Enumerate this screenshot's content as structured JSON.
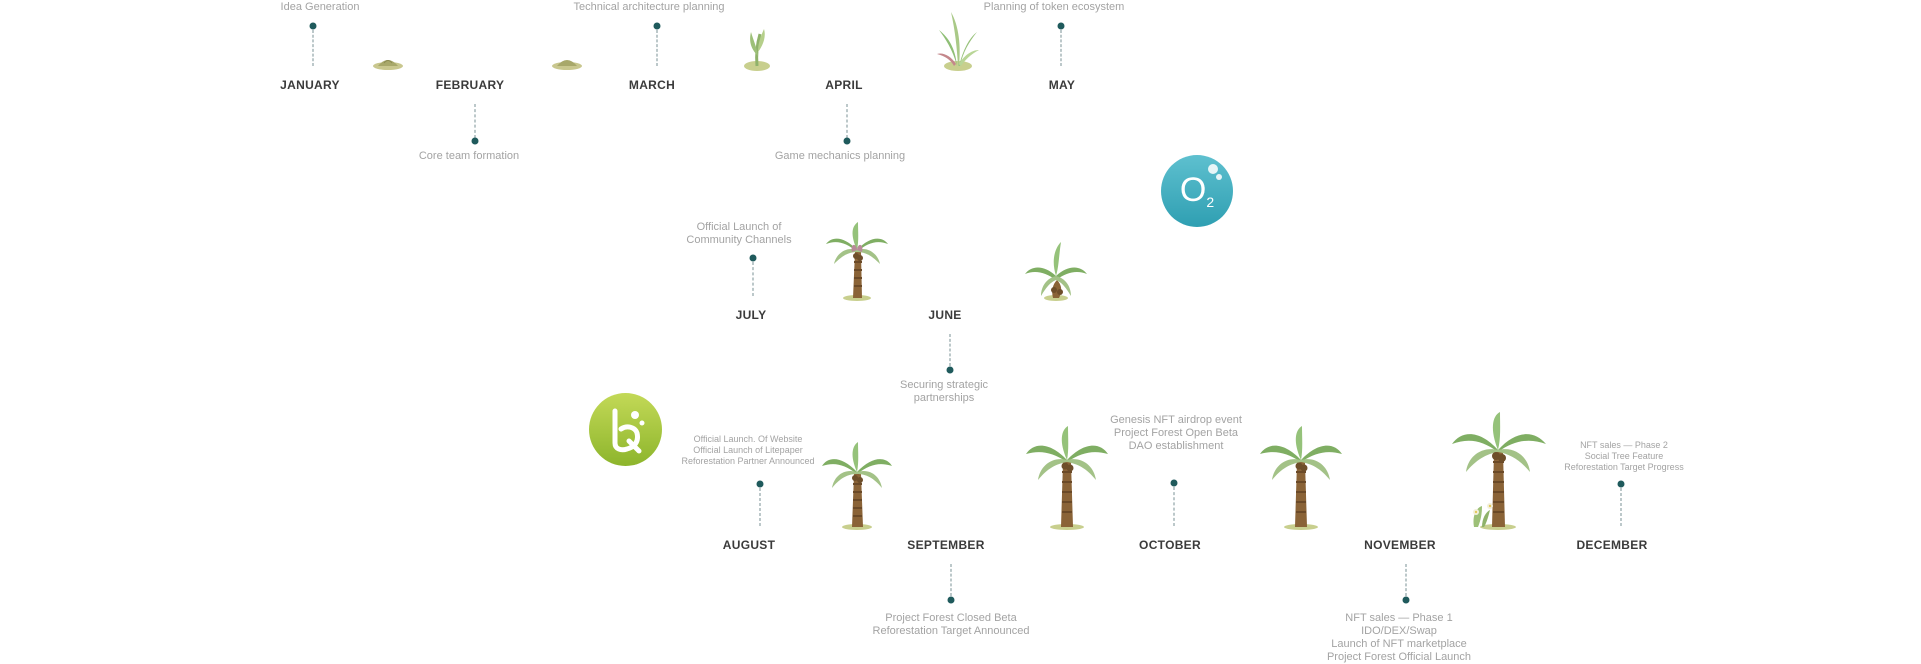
{
  "months": {
    "jan": "JANUARY",
    "feb": "FEBRUARY",
    "mar": "MARCH",
    "apr": "APRIL",
    "may": "MAY",
    "jun": "JUNE",
    "jul": "JULY",
    "aug": "AUGUST",
    "sep": "SEPTEMBER",
    "oct": "OCTOBER",
    "nov": "NOVEMBER",
    "dec": "DECEMBER"
  },
  "milestones": {
    "jan": [
      "Idea Generation"
    ],
    "feb": [
      "Core team formation"
    ],
    "mar": [
      "Technical architecture planning"
    ],
    "apr": [
      "Game mechanics planning"
    ],
    "may": [
      "Planning of token ecosystem"
    ],
    "jun": [
      "Securing strategic",
      "partnerships"
    ],
    "jul": [
      "Official Launch of",
      "Community Channels"
    ],
    "aug": [
      "Official Launch. Of Website",
      "Official Launch of Litepaper",
      "Reforestation Partner Announced"
    ],
    "sep": [
      "Project Forest Closed Beta",
      "Reforestation Target Announced"
    ],
    "oct": [
      "Genesis NFT airdrop event",
      "Project Forest Open Beta",
      "DAO establishment"
    ],
    "nov": [
      "NFT sales — Phase 1",
      "IDO/DEX/Swap",
      "Launch of NFT marketplace",
      "Project Forest Official Launch"
    ],
    "dec": [
      "NFT sales — Phase 2",
      "Social Tree Feature",
      "Reforestation Target Progress"
    ]
  },
  "badges": {
    "o2": {
      "main": "O",
      "sub": "2",
      "color_top": "#4fb3c4",
      "color_bottom": "#2a98ad"
    },
    "logo": {
      "glyph": "b",
      "color_top": "#b7d24a",
      "color_bottom": "#8db52c"
    }
  },
  "colors": {
    "dot": "#1f5a5c",
    "month_text": "#3b3b3b",
    "note_text": "#a3a3a3"
  }
}
